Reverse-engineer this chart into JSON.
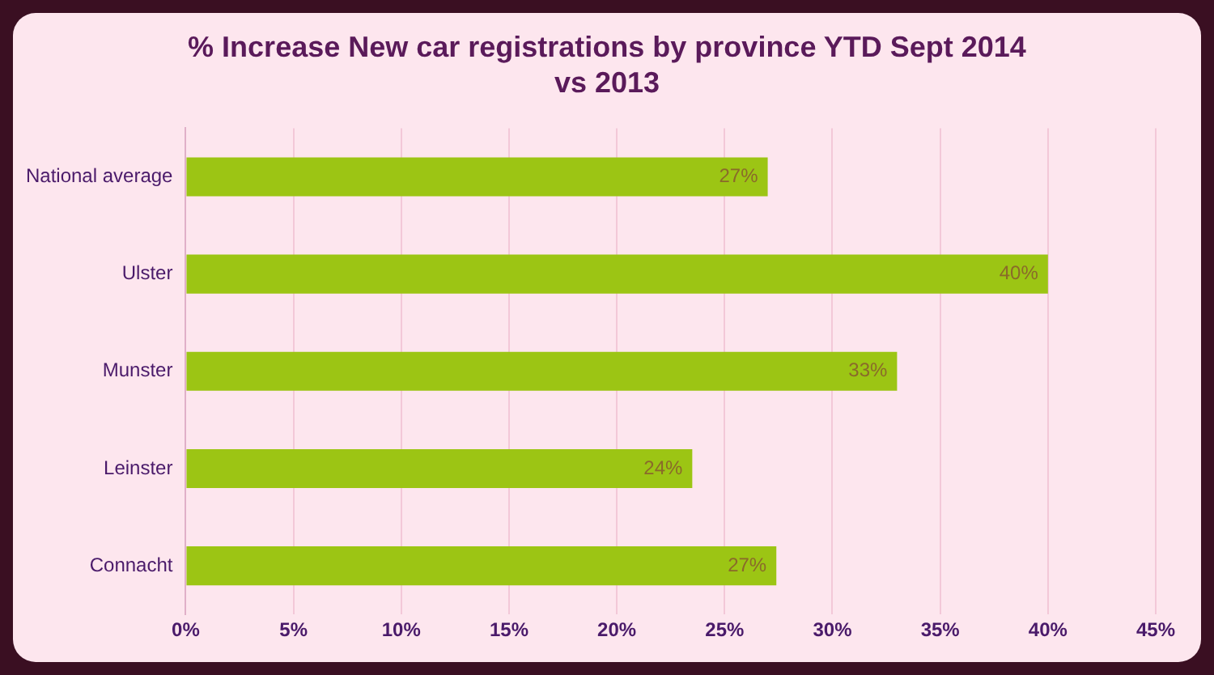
{
  "chart_data": {
    "type": "bar",
    "orientation": "horizontal",
    "title": "% Increase New car registrations by province YTD Sept 2014 vs 2013",
    "categories": [
      "National average",
      "Ulster",
      "Munster",
      "Leinster",
      "Connacht"
    ],
    "values": [
      27,
      40,
      33,
      23.5,
      27.4
    ],
    "value_labels": [
      "27%",
      "40%",
      "33%",
      "24%",
      "27%"
    ],
    "color": "#9cc514",
    "xlim": [
      0,
      45
    ],
    "xticks": [
      {
        "value": 0,
        "label": "0%"
      },
      {
        "value": 5,
        "label": "5%"
      },
      {
        "value": 10,
        "label": "10%"
      },
      {
        "value": 15,
        "label": "15%"
      },
      {
        "value": 20,
        "label": "20%"
      },
      {
        "value": 25,
        "label": "25%"
      },
      {
        "value": 30,
        "label": "30%"
      },
      {
        "value": 35,
        "label": "35%"
      },
      {
        "value": 40,
        "label": "40%"
      },
      {
        "value": 45,
        "label": "45%"
      }
    ],
    "grid": "x",
    "legend": false
  }
}
